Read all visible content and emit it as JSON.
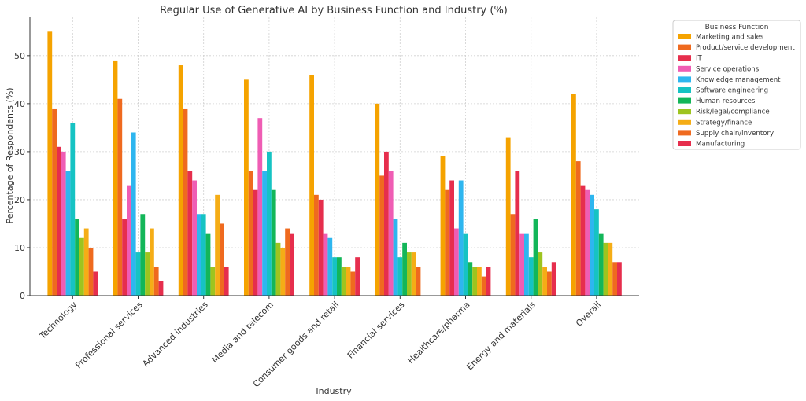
{
  "chart_data": {
    "type": "bar",
    "title": "Regular Use of Generative AI by Business Function and Industry (%)",
    "xlabel": "Industry",
    "ylabel": "Percentage of Respondents (%)",
    "ylim": [
      0,
      58
    ],
    "yticks": [
      0,
      10,
      20,
      30,
      40,
      50
    ],
    "grid": true,
    "legend_title": "Business Function",
    "legend_position": "outside-right",
    "categories": [
      "Technology",
      "Professional services",
      "Advanced industries",
      "Media and telecom",
      "Consumer goods and retail",
      "Financial services",
      "Healthcare/pharma",
      "Energy and materials",
      "Overall"
    ],
    "series": [
      {
        "name": "Marketing and sales",
        "color": "#f5a300",
        "values": [
          55,
          49,
          48,
          45,
          46,
          40,
          29,
          33,
          42
        ]
      },
      {
        "name": "Product/service development",
        "color": "#ef6a1f",
        "values": [
          39,
          41,
          39,
          26,
          21,
          25,
          22,
          17,
          28
        ]
      },
      {
        "name": "IT",
        "color": "#e62e4d",
        "values": [
          31,
          16,
          26,
          22,
          20,
          30,
          24,
          26,
          23
        ]
      },
      {
        "name": "Service operations",
        "color": "#ef5db4",
        "values": [
          30,
          23,
          24,
          37,
          13,
          26,
          14,
          13,
          22
        ]
      },
      {
        "name": "Knowledge management",
        "color": "#2eb6ef",
        "values": [
          26,
          34,
          17,
          26,
          12,
          16,
          24,
          13,
          21
        ]
      },
      {
        "name": "Software engineering",
        "color": "#16c3c3",
        "values": [
          36,
          9,
          17,
          30,
          8,
          8,
          13,
          8,
          18
        ]
      },
      {
        "name": "Human resources",
        "color": "#13b659",
        "values": [
          16,
          17,
          13,
          22,
          8,
          11,
          7,
          16,
          13
        ]
      },
      {
        "name": "Risk/legal/compliance",
        "color": "#9ec41f",
        "values": [
          12,
          9,
          6,
          11,
          6,
          9,
          6,
          9,
          11
        ]
      },
      {
        "name": "Strategy/finance",
        "color": "#f5ad16",
        "values": [
          14,
          14,
          21,
          10,
          6,
          9,
          6,
          6,
          11
        ]
      },
      {
        "name": "Supply chain/inventory",
        "color": "#ef6a1f",
        "values": [
          10,
          6,
          15,
          14,
          5,
          6,
          4,
          5,
          7
        ]
      },
      {
        "name": "Manufacturing",
        "color": "#e62e4d",
        "values": [
          5,
          3,
          6,
          13,
          8,
          0,
          6,
          7,
          7
        ]
      }
    ]
  }
}
